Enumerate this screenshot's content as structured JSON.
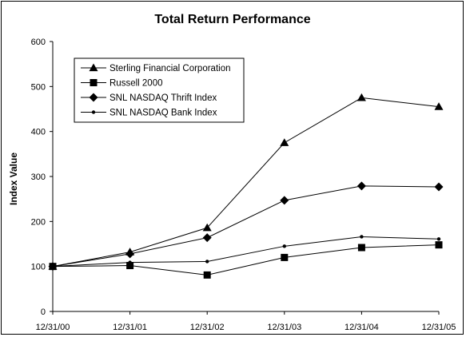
{
  "chart_data": {
    "type": "line",
    "title": "Total Return Performance",
    "xlabel": "",
    "ylabel": "Index Value",
    "categories": [
      "12/31/00",
      "12/31/01",
      "12/31/02",
      "12/31/03",
      "12/31/04",
      "12/31/05"
    ],
    "ylim": [
      0,
      600
    ],
    "yticks": [
      0,
      100,
      200,
      300,
      400,
      500,
      600
    ],
    "grid": false,
    "legend_position": "top-left",
    "series": [
      {
        "name": "Sterling Financial Corporation",
        "marker": "triangle",
        "values": [
          100,
          132,
          186,
          375,
          475,
          455
        ]
      },
      {
        "name": "Russell 2000",
        "marker": "square",
        "values": [
          100,
          102,
          81,
          120,
          142,
          148
        ]
      },
      {
        "name": "SNL NASDAQ Thrift Index",
        "marker": "diamond",
        "values": [
          100,
          128,
          164,
          247,
          279,
          277
        ]
      },
      {
        "name": "SNL NASDAQ Bank Index",
        "marker": "dot",
        "values": [
          100,
          109,
          111,
          145,
          166,
          161
        ]
      }
    ],
    "colors": {
      "line": "#000000",
      "background": "#ffffff"
    }
  }
}
